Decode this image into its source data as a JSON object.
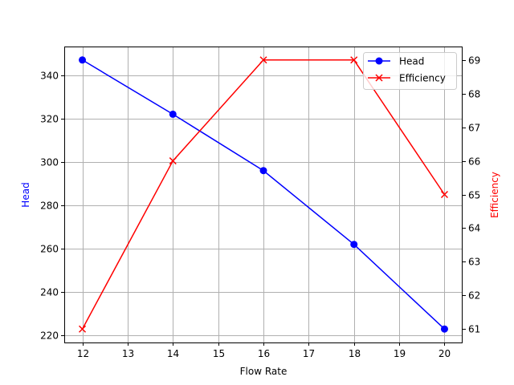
{
  "chart_data": {
    "type": "line",
    "title": "",
    "xlabel": "Flow Rate",
    "x": [
      12,
      14,
      16,
      18,
      20
    ],
    "xticks": [
      12,
      13,
      14,
      15,
      16,
      17,
      18,
      19,
      20
    ],
    "xlim": [
      11.6,
      20.4
    ],
    "grid": true,
    "legend_position": "upper right",
    "series": [
      {
        "name": "Head",
        "axis": "left",
        "ylabel": "Head",
        "color": "#0000ff",
        "marker": "circle",
        "values": [
          347,
          322,
          296,
          262,
          223
        ],
        "yticks": [
          220,
          240,
          260,
          280,
          300,
          320,
          340
        ],
        "ylim": [
          216.8,
          353.2
        ]
      },
      {
        "name": "Efficiency",
        "axis": "right",
        "ylabel": "Efficiency",
        "color": "#ff0000",
        "marker": "x",
        "values": [
          61,
          66,
          69,
          69,
          65
        ],
        "yticks": [
          61,
          62,
          63,
          64,
          65,
          66,
          67,
          68,
          69
        ],
        "ylim": [
          60.6,
          69.4
        ]
      }
    ]
  }
}
